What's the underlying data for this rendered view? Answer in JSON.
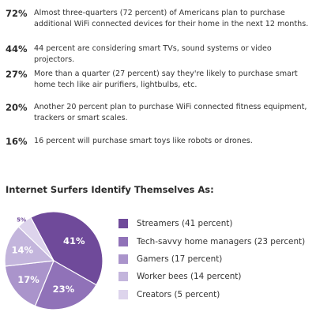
{
  "stats": [
    {
      "pct": "72%",
      "text": "Almost three-quarters (72 percent) of Americans plan to purchase additional WiFi connected devices for their home in the next 12 months."
    },
    {
      "pct": "44%",
      "text": "44 percent are considering smart TVs, sound systems or video projectors."
    },
    {
      "pct": "27%",
      "text": "More than a quarter (27 percent) say they're likely to purchase smart home tech like air purifiers, lightbulbs, etc."
    },
    {
      "pct": "20%",
      "text": "Another 20 percent plan to purchase WiFi connected fitness equipment, trackers or smart scales."
    },
    {
      "pct": "16%",
      "text": "16 percent will purchase smart toys like robots or drones."
    }
  ],
  "chart_title": "Internet Surfers Identify Themselves As:",
  "chart_data": {
    "type": "pie",
    "title": "Internet Surfers Identify Themselves As:",
    "categories": [
      "Streamers",
      "Tech-savvy home managers",
      "Gamers",
      "Worker bees",
      "Creators"
    ],
    "values": [
      41,
      23,
      17,
      14,
      5
    ],
    "slice_labels": [
      "41%",
      "23%",
      "17%",
      "14%",
      "5%"
    ],
    "legend_labels": [
      "Streamers (41 percent)",
      "Tech-savvy home managers (23 percent)",
      "Gamers (17 percent)",
      "Worker bees (14 percent)",
      "Creators (5 percent)"
    ],
    "colors": [
      "#6f4a9a",
      "#9072b8",
      "#aa94cb",
      "#c3b5dc",
      "#ddd4ec"
    ],
    "legend_position": "right"
  }
}
